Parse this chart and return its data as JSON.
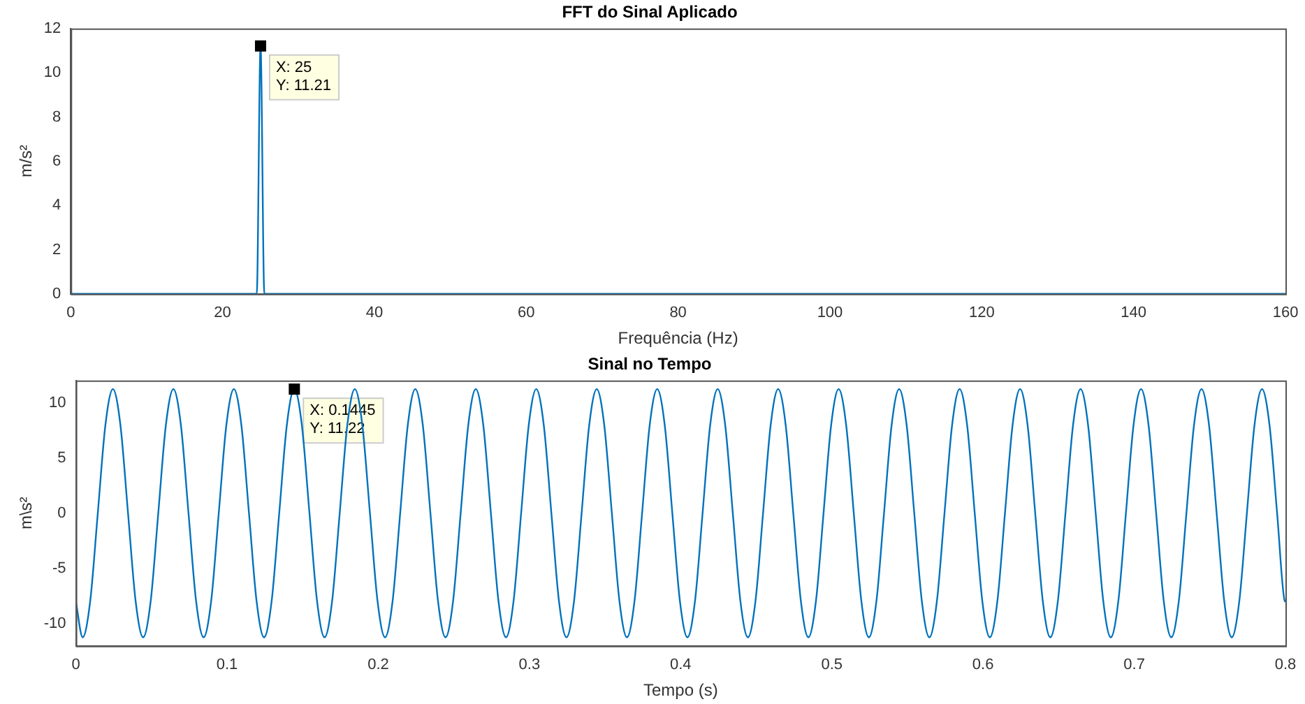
{
  "chart_data": [
    {
      "type": "line",
      "title": "FFT do Sinal Aplicado",
      "xlabel": "Frequência (Hz)",
      "ylabel": "m/s²",
      "color": "#0072bd",
      "x": [
        0,
        24.5,
        25,
        25.5,
        160
      ],
      "values": [
        0,
        0,
        11.21,
        0,
        0
      ],
      "xlim": [
        0,
        160
      ],
      "xticks": [
        0,
        20,
        40,
        60,
        80,
        100,
        120,
        140,
        160
      ],
      "ylim": [
        0,
        12
      ],
      "yticks": [
        0,
        2,
        4,
        6,
        8,
        10,
        12
      ],
      "annotations": [
        {
          "text": "X: 25\nY: 11.21",
          "x": 25,
          "y": 11.21
        }
      ]
    },
    {
      "type": "line",
      "title": "Sinal no Tempo",
      "xlabel": "Tempo (s)",
      "ylabel": "m\\s²",
      "color": "#0072bd",
      "x": [
        0,
        0.0045,
        0.0095,
        0.0145,
        0.0195,
        0.0245,
        0.0295,
        0.0345,
        0.0395,
        0.0445,
        0.0495,
        0.0545,
        0.0595,
        0.0645,
        0.0695,
        0.0745,
        0.0795,
        0.0845,
        0.0895,
        0.0945,
        0.0995,
        0.1045,
        0.1095,
        0.1145,
        0.1195,
        0.1245,
        0.1295,
        0.1345,
        0.1395,
        0.1445,
        0.1495,
        0.1545,
        0.1595,
        0.1645,
        0.1695,
        0.1745,
        0.1795,
        0.1845,
        0.1895,
        0.1945,
        0.1995,
        0.2045,
        0.2095,
        0.2145,
        0.2195,
        0.2245,
        0.2295,
        0.2345,
        0.2395,
        0.2445,
        0.2495,
        0.2545,
        0.2595,
        0.2645,
        0.2695,
        0.2745,
        0.2795,
        0.2845,
        0.2895,
        0.2945,
        0.2995,
        0.3045,
        0.3095,
        0.3145,
        0.3195,
        0.3245,
        0.3295,
        0.3345,
        0.3395,
        0.3445,
        0.3495,
        0.3545,
        0.3595,
        0.3645,
        0.3695,
        0.3745,
        0.3795,
        0.3845,
        0.3895,
        0.3945,
        0.3995,
        0.4045,
        0.4095,
        0.4145,
        0.4195,
        0.4245,
        0.4295,
        0.4345,
        0.4395,
        0.4445,
        0.4495,
        0.4545,
        0.4595,
        0.4645,
        0.4695,
        0.4745,
        0.4795,
        0.4845,
        0.4895,
        0.4945,
        0.4995,
        0.5045,
        0.5095,
        0.5145,
        0.5195,
        0.5245,
        0.5295,
        0.5345,
        0.5395,
        0.5445,
        0.5495,
        0.5545,
        0.5595,
        0.5645,
        0.5695,
        0.5745,
        0.5795,
        0.5845,
        0.5895,
        0.5945,
        0.5995,
        0.6045,
        0.6095,
        0.6145,
        0.6195,
        0.6245,
        0.6295,
        0.6345,
        0.6395,
        0.6445,
        0.6495,
        0.6545,
        0.6595,
        0.6645,
        0.6695,
        0.6745,
        0.6795,
        0.6845,
        0.6895,
        0.6945,
        0.6995,
        0.7045,
        0.7095,
        0.7145,
        0.7195,
        0.7245,
        0.7295,
        0.7345,
        0.7395,
        0.7445,
        0.7495,
        0.7545,
        0.7595,
        0.7645,
        0.7695,
        0.7745,
        0.7795,
        0.7845,
        0.7895,
        0.7945,
        0.7995,
        0.8
      ],
      "values": [
        -8,
        -11.22,
        -7.93,
        0,
        7.93,
        11.22,
        7.93,
        0,
        -7.93,
        -11.22,
        -7.93,
        0,
        7.93,
        11.22,
        7.93,
        0,
        -7.93,
        -11.22,
        -7.93,
        0,
        7.93,
        11.22,
        7.93,
        0,
        -7.93,
        -11.22,
        -7.93,
        0,
        7.93,
        11.22,
        7.93,
        0,
        -7.93,
        -11.22,
        -7.93,
        0,
        7.93,
        11.22,
        7.93,
        0,
        -7.93,
        -11.22,
        -7.93,
        0,
        7.93,
        11.22,
        7.93,
        0,
        -7.93,
        -11.22,
        -7.93,
        0,
        7.93,
        11.22,
        7.93,
        0,
        -7.93,
        -11.22,
        -7.93,
        0,
        7.93,
        11.22,
        7.93,
        0,
        -7.93,
        -11.22,
        -7.93,
        0,
        7.93,
        11.22,
        7.93,
        0,
        -7.93,
        -11.22,
        -7.93,
        0,
        7.93,
        11.22,
        7.93,
        0,
        -7.93,
        -11.22,
        -7.93,
        0,
        7.93,
        11.22,
        7.93,
        0,
        -7.93,
        -11.22,
        -7.93,
        0,
        7.93,
        11.22,
        7.93,
        0,
        -7.93,
        -11.22,
        -7.93,
        0,
        7.93,
        11.22,
        7.93,
        0,
        -7.93,
        -11.22,
        -7.93,
        0,
        7.93,
        11.22,
        7.93,
        0,
        -7.93,
        -11.22,
        -7.93,
        0,
        7.93,
        11.22,
        7.93,
        0,
        -7.93,
        -11.22,
        -7.93,
        0,
        7.93,
        11.22,
        7.93,
        0,
        -7.93,
        -11.22,
        -7.93,
        0,
        7.93,
        11.22,
        7.93,
        0,
        -7.93,
        -11.22,
        -7.93,
        0,
        7.93,
        11.22,
        7.93,
        0,
        -7.93,
        -11.22,
        -7.93,
        0,
        7.93,
        11.22,
        7.93,
        0,
        -7.93,
        -11.22,
        -7.93,
        0,
        7.93,
        11.22,
        7.93,
        0,
        -7.93,
        -8
      ],
      "xlim": [
        0,
        0.8
      ],
      "xticks": [
        0,
        0.1,
        0.2,
        0.3,
        0.4,
        0.5,
        0.6,
        0.7,
        0.8
      ],
      "ylim": [
        -12,
        12
      ],
      "yticks": [
        -10,
        -5,
        0,
        5,
        10
      ],
      "annotations": [
        {
          "text": "X: 0.1445\nY: 11.22",
          "x": 0.1445,
          "y": 11.22
        }
      ]
    }
  ]
}
